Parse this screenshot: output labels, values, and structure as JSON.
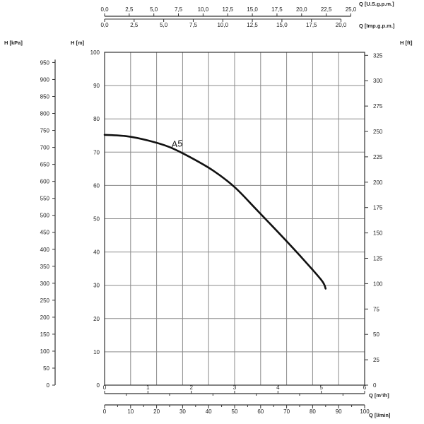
{
  "chart_data": {
    "type": "line",
    "curve_label": "A5",
    "axes": {
      "q_m3h": {
        "label": "Q [m³/h]",
        "range": [
          0,
          6
        ],
        "ticks": [
          "0",
          "1",
          "2",
          "3",
          "4",
          "5",
          "6"
        ]
      },
      "q_lmin": {
        "label": "Q [l/min]",
        "range": [
          0,
          100
        ],
        "ticks": [
          "0",
          "10",
          "20",
          "30",
          "40",
          "50",
          "60",
          "70",
          "80",
          "90",
          "100"
        ]
      },
      "q_usgpm": {
        "label": "Q [U.S.g.p.m.]",
        "range": [
          0,
          26.4
        ],
        "ticks": [
          "0,0",
          "2,5",
          "5,0",
          "7,5",
          "10,0",
          "12,5",
          "15,0",
          "17,5",
          "20,0",
          "22,5",
          "25,0"
        ]
      },
      "q_impgpm": {
        "label": "Q [Imp.g.p.m.]",
        "range": [
          0,
          22
        ],
        "ticks": [
          "0,0",
          "2,5",
          "5,0",
          "7,5",
          "10,0",
          "12,5",
          "15,0",
          "17,5",
          "20,0"
        ]
      },
      "h_m": {
        "label": "H [m]",
        "range": [
          0,
          100
        ],
        "ticks": [
          "0",
          "10",
          "20",
          "30",
          "40",
          "50",
          "60",
          "70",
          "80",
          "90",
          "100"
        ]
      },
      "h_kpa": {
        "label": "H [kPa]",
        "range": [
          0,
          980
        ],
        "ticks": [
          "0",
          "50",
          "100",
          "150",
          "200",
          "250",
          "300",
          "350",
          "400",
          "450",
          "500",
          "550",
          "600",
          "650",
          "700",
          "750",
          "800",
          "850",
          "900",
          "950"
        ]
      },
      "h_ft": {
        "label": "H [ft]",
        "range": [
          0,
          328
        ],
        "ticks": [
          "0",
          "25",
          "50",
          "75",
          "100",
          "125",
          "150",
          "175",
          "200",
          "225",
          "250",
          "275",
          "300",
          "325"
        ]
      }
    },
    "grid": true,
    "series": [
      {
        "name": "A5",
        "x_q_m3h": [
          0,
          0.5,
          1.0,
          1.5,
          2.0,
          2.5,
          3.0,
          3.5,
          4.0,
          4.5,
          5.0,
          5.1
        ],
        "y_h_m": [
          75.2,
          74.8,
          73.5,
          71.5,
          68.3,
          64.5,
          59.5,
          52.8,
          46.0,
          39.0,
          31.6,
          29.0
        ]
      }
    ]
  }
}
